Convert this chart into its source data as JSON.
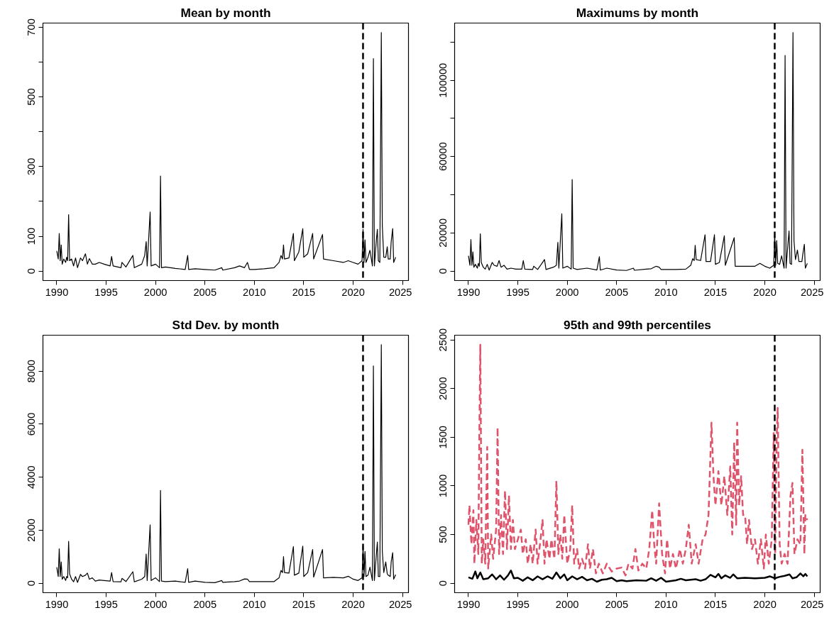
{
  "chart_data": [
    {
      "type": "line",
      "title": "Mean by month",
      "xlim": [
        1988.6,
        2025.6
      ],
      "xticks": [
        1990,
        1995,
        2000,
        2005,
        2010,
        2015,
        2020,
        2025
      ],
      "ylim": [
        -27,
        712
      ],
      "yticks": [
        0,
        100,
        {
          "value": 200,
          "label": null
        },
        300,
        {
          "value": 400,
          "label": null
        },
        500,
        {
          "value": 600,
          "label": null
        },
        700
      ],
      "grid": false,
      "ref_lines": [
        {
          "axis": "x",
          "value": 2021,
          "label": null,
          "color": "#000000",
          "line_style": "dashed"
        }
      ],
      "x": [
        1990.0,
        1990.15,
        1990.25,
        1990.35,
        1990.45,
        1990.55,
        1990.7,
        1990.9,
        1991.0,
        1991.1,
        1991.2,
        1991.3,
        1991.5,
        1991.7,
        1991.9,
        1992.1,
        1992.4,
        1992.6,
        1992.9,
        1993.1,
        1993.3,
        1993.6,
        1993.9,
        1994.3,
        1994.8,
        1995.4,
        1995.55,
        1995.7,
        1996.5,
        1996.6,
        1997.0,
        1997.7,
        1997.85,
        1998.6,
        1998.9,
        1999.05,
        1999.15,
        1999.45,
        1999.55,
        2000.0,
        2000.4,
        2000.5,
        2000.6,
        2001.0,
        2002.0,
        2003.0,
        2003.25,
        2003.35,
        2004.0,
        2005.0,
        2006.0,
        2006.7,
        2006.8,
        2008.0,
        2008.5,
        2009.0,
        2009.3,
        2009.5,
        2010.0,
        2011.0,
        2012.0,
        2012.5,
        2012.7,
        2012.85,
        2012.95,
        2013.05,
        2013.5,
        2013.95,
        2014.05,
        2014.5,
        2014.9,
        2015.0,
        2015.4,
        2015.9,
        2016.0,
        2016.9,
        2017.0,
        2018.0,
        2019.0,
        2019.5,
        2020.0,
        2020.5,
        2020.9,
        2021.0,
        2021.1,
        2021.2,
        2021.3,
        2021.5,
        2021.7,
        2021.95,
        2022.05,
        2022.15,
        2022.35,
        2022.45,
        2022.55,
        2022.7,
        2022.85,
        2022.95,
        2023.1,
        2023.3,
        2023.45,
        2023.55,
        2023.75,
        2023.85,
        2024.0,
        2024.1,
        2024.3
      ],
      "series": [
        {
          "color": "#000000",
          "line_style": "solid",
          "values": [
            58,
            35,
            108,
            30,
            75,
            20,
            35,
            25,
            40,
            30,
            162,
            30,
            35,
            15,
            38,
            10,
            38,
            30,
            50,
            20,
            36,
            20,
            20,
            25,
            20,
            15,
            42,
            15,
            10,
            25,
            12,
            45,
            10,
            20,
            45,
            85,
            15,
            170,
            15,
            20,
            10,
            273,
            10,
            12,
            8,
            5,
            45,
            5,
            7,
            5,
            3,
            10,
            3,
            10,
            15,
            10,
            25,
            5,
            5,
            7,
            10,
            25,
            45,
            35,
            75,
            35,
            38,
            108,
            30,
            55,
            122,
            40,
            50,
            108,
            35,
            105,
            35,
            30,
            25,
            30,
            25,
            20,
            30,
            120,
            25,
            90,
            25,
            40,
            60,
            15,
            610,
            15,
            90,
            120,
            30,
            25,
            685,
            130,
            40,
            40,
            70,
            35,
            35,
            85,
            122,
            25,
            40
          ]
        }
      ]
    },
    {
      "type": "line",
      "title": "Maximums by month",
      "xlim": [
        1988.6,
        2025.6
      ],
      "xticks": [
        1990,
        1995,
        2000,
        2005,
        2010,
        2015,
        2020,
        2025
      ],
      "ylim": [
        -5000,
        130000
      ],
      "yticks": [
        0,
        20000,
        {
          "value": 40000,
          "label": null
        },
        60000,
        {
          "value": 80000,
          "label": null
        },
        100000,
        {
          "value": 120000,
          "label": null
        }
      ],
      "grid": false,
      "ref_lines": [
        {
          "axis": "x",
          "value": 2021,
          "label": null,
          "color": "#000000",
          "line_style": "dashed"
        }
      ],
      "x": [
        1990.0,
        1990.15,
        1990.25,
        1990.35,
        1990.45,
        1990.55,
        1990.7,
        1990.9,
        1991.0,
        1991.1,
        1991.2,
        1991.3,
        1991.5,
        1991.7,
        1991.9,
        1992.1,
        1992.4,
        1992.6,
        1992.9,
        1993.1,
        1993.3,
        1993.6,
        1993.9,
        1994.3,
        1994.8,
        1995.4,
        1995.55,
        1995.7,
        1996.5,
        1996.6,
        1997.0,
        1997.7,
        1997.85,
        1998.6,
        1998.9,
        1999.05,
        1999.15,
        1999.45,
        1999.55,
        2000.0,
        2000.4,
        2000.5,
        2000.6,
        2001.0,
        2002.0,
        2003.0,
        2003.25,
        2003.35,
        2004.0,
        2005.0,
        2006.0,
        2006.7,
        2006.8,
        2008.0,
        2008.5,
        2009.0,
        2009.3,
        2009.5,
        2010.0,
        2011.0,
        2012.0,
        2012.5,
        2012.7,
        2012.85,
        2012.95,
        2013.05,
        2013.5,
        2013.95,
        2014.05,
        2014.5,
        2014.9,
        2015.0,
        2015.4,
        2015.9,
        2016.0,
        2016.9,
        2017.0,
        2018.0,
        2019.0,
        2019.5,
        2020.0,
        2020.5,
        2020.9,
        2021.0,
        2021.1,
        2021.2,
        2021.3,
        2021.5,
        2021.7,
        2021.95,
        2022.05,
        2022.15,
        2022.35,
        2022.45,
        2022.55,
        2022.7,
        2022.85,
        2022.95,
        2023.1,
        2023.3,
        2023.45,
        2023.55,
        2023.75,
        2023.85,
        2024.0,
        2024.1,
        2024.3
      ],
      "series": [
        {
          "color": "#000000",
          "line_style": "solid",
          "values": [
            8000,
            3000,
            16500,
            3000,
            10000,
            2000,
            3500,
            1500,
            4000,
            2500,
            19500,
            4500,
            2000,
            1000,
            3500,
            500,
            4500,
            3000,
            2500,
            5500,
            2000,
            3000,
            1000,
            1500,
            1000,
            1000,
            5500,
            1000,
            800,
            2500,
            800,
            6000,
            800,
            2000,
            3000,
            15000,
            1500,
            30000,
            1500,
            2500,
            1000,
            48000,
            1500,
            800,
            1500,
            500,
            7500,
            500,
            1500,
            500,
            300,
            1500,
            400,
            1000,
            1200,
            2500,
            2000,
            800,
            800,
            800,
            1000,
            3000,
            6500,
            5500,
            13500,
            6000,
            5500,
            19000,
            5000,
            5000,
            19000,
            3500,
            4500,
            18500,
            3000,
            17500,
            2500,
            2500,
            2500,
            4000,
            2500,
            1500,
            3000,
            19000,
            3000,
            16000,
            4000,
            3500,
            8000,
            1500,
            113000,
            1500,
            15000,
            21000,
            4000,
            3500,
            125000,
            16000,
            6000,
            11000,
            5000,
            5000,
            5000,
            9000,
            14000,
            1500,
            4000
          ]
        }
      ]
    },
    {
      "type": "line",
      "title": "Std Dev. by month",
      "xlim": [
        1988.6,
        2025.6
      ],
      "xticks": [
        1990,
        1995,
        2000,
        2005,
        2010,
        2015,
        2020,
        2025
      ],
      "ylim": [
        -360,
        9360
      ],
      "yticks": [
        0,
        2000,
        4000,
        6000,
        8000
      ],
      "grid": false,
      "ref_lines": [
        {
          "axis": "x",
          "value": 2021,
          "label": null,
          "color": "#000000",
          "line_style": "dashed"
        }
      ],
      "x": [
        1990.0,
        1990.15,
        1990.25,
        1990.35,
        1990.45,
        1990.55,
        1990.7,
        1990.9,
        1991.0,
        1991.1,
        1991.2,
        1991.3,
        1991.5,
        1991.7,
        1991.9,
        1992.1,
        1992.4,
        1992.6,
        1992.9,
        1993.1,
        1993.3,
        1993.6,
        1993.9,
        1994.3,
        1994.8,
        1995.4,
        1995.55,
        1995.7,
        1996.5,
        1996.6,
        1997.0,
        1997.7,
        1997.85,
        1998.6,
        1998.9,
        1999.05,
        1999.15,
        1999.45,
        1999.55,
        2000.0,
        2000.4,
        2000.5,
        2000.6,
        2001.0,
        2002.0,
        2003.0,
        2003.25,
        2003.35,
        2004.0,
        2005.0,
        2006.0,
        2006.7,
        2006.8,
        2008.0,
        2008.5,
        2009.0,
        2009.3,
        2009.5,
        2010.0,
        2011.0,
        2012.0,
        2012.5,
        2012.7,
        2012.85,
        2012.95,
        2013.05,
        2013.5,
        2013.95,
        2014.05,
        2014.5,
        2014.9,
        2015.0,
        2015.4,
        2015.9,
        2016.0,
        2016.9,
        2017.0,
        2018.0,
        2019.0,
        2019.5,
        2020.0,
        2020.5,
        2020.9,
        2021.0,
        2021.1,
        2021.2,
        2021.3,
        2021.5,
        2021.7,
        2021.95,
        2022.05,
        2022.15,
        2022.35,
        2022.45,
        2022.55,
        2022.7,
        2022.85,
        2022.95,
        2023.1,
        2023.3,
        2023.45,
        2023.55,
        2023.75,
        2023.85,
        2024.0,
        2024.1,
        2024.3
      ],
      "series": [
        {
          "color": "#000000",
          "line_style": "solid",
          "values": [
            600,
            250,
            1300,
            250,
            800,
            150,
            250,
            100,
            250,
            200,
            1580,
            350,
            150,
            50,
            250,
            30,
            330,
            250,
            300,
            380,
            150,
            200,
            80,
            120,
            100,
            80,
            400,
            60,
            50,
            180,
            60,
            430,
            50,
            150,
            250,
            1100,
            100,
            2200,
            100,
            200,
            60,
            3500,
            80,
            60,
            80,
            30,
            550,
            30,
            80,
            30,
            20,
            100,
            30,
            60,
            80,
            160,
            150,
            60,
            60,
            60,
            60,
            200,
            480,
            400,
            1000,
            400,
            380,
            1380,
            300,
            380,
            1400,
            250,
            400,
            1270,
            230,
            1270,
            200,
            220,
            200,
            260,
            150,
            100,
            200,
            1400,
            250,
            1200,
            250,
            300,
            600,
            100,
            8200,
            100,
            1100,
            1550,
            250,
            250,
            9000,
            1200,
            400,
            800,
            350,
            300,
            250,
            800,
            1150,
            150,
            320
          ]
        }
      ]
    },
    {
      "type": "line",
      "title": "95th and 99th percentiles",
      "xlim": [
        1988.6,
        2025.6
      ],
      "xticks": [
        1990,
        1995,
        2000,
        2005,
        2010,
        2015,
        2020,
        2025
      ],
      "ylim": [
        -98,
        2548
      ],
      "yticks": [
        0,
        500,
        1000,
        1500,
        2000,
        2500
      ],
      "grid": false,
      "ref_lines": [
        {
          "axis": "x",
          "value": 2021,
          "label": null,
          "color": "#000000",
          "line_style": "dashed"
        }
      ],
      "series": [
        {
          "color": "#000000",
          "line_style": "solid",
          "x": [
            1990.0,
            1990.4,
            1990.7,
            1990.9,
            1991.2,
            1991.5,
            1992.0,
            1992.4,
            1992.8,
            1993.2,
            1993.6,
            1994.0,
            1994.3,
            1994.6,
            1995.0,
            1995.5,
            1996.0,
            1996.5,
            1997.0,
            1997.5,
            1998.0,
            1998.5,
            1998.9,
            1999.3,
            1999.7,
            2000.0,
            2000.5,
            2001.0,
            2001.5,
            2002.0,
            2002.5,
            2003.0,
            2003.5,
            2004.0,
            2004.5,
            2005.0,
            2005.5,
            2006.0,
            2007.0,
            2008.0,
            2008.5,
            2009.0,
            2009.5,
            2010.0,
            2011.0,
            2011.5,
            2012.0,
            2013.0,
            2013.5,
            2014.0,
            2014.5,
            2015.0,
            2015.3,
            2015.6,
            2016.0,
            2016.5,
            2016.8,
            2017.2,
            2018.0,
            2019.0,
            2020.0,
            2020.5,
            2021.0,
            2021.5,
            2022.0,
            2022.5,
            2022.8,
            2023.2,
            2023.6,
            2023.9,
            2024.1,
            2024.3
          ],
          "values": [
            60,
            45,
            120,
            50,
            110,
            40,
            50,
            90,
            40,
            80,
            35,
            80,
            130,
            50,
            55,
            25,
            60,
            30,
            70,
            40,
            70,
            45,
            110,
            50,
            90,
            30,
            70,
            40,
            65,
            30,
            45,
            15,
            35,
            40,
            55,
            20,
            30,
            20,
            30,
            25,
            50,
            25,
            55,
            15,
            30,
            45,
            30,
            40,
            25,
            40,
            85,
            60,
            95,
            50,
            80,
            55,
            90,
            50,
            55,
            50,
            55,
            70,
            50,
            65,
            75,
            90,
            50,
            60,
            100,
            70,
            95,
            70
          ]
        },
        {
          "color": "#df536b",
          "line_style": "dashed",
          "x": [
            1990.0,
            1990.1,
            1990.3,
            1990.5,
            1990.6,
            1990.8,
            1991.0,
            1991.1,
            1991.2,
            1991.35,
            1991.5,
            1991.7,
            1991.9,
            1992.0,
            1992.3,
            1992.5,
            1992.8,
            1992.95,
            1993.1,
            1993.3,
            1993.5,
            1993.7,
            1993.9,
            1994.1,
            1994.3,
            1994.5,
            1994.7,
            1995.0,
            1995.3,
            1995.5,
            1995.8,
            1996.0,
            1996.3,
            1996.5,
            1996.8,
            1997.0,
            1997.3,
            1997.5,
            1997.7,
            1997.9,
            1998.2,
            1998.4,
            1998.7,
            1998.9,
            1999.1,
            1999.3,
            1999.5,
            1999.7,
            2000.0,
            2000.3,
            2000.5,
            2000.7,
            2001.0,
            2001.2,
            2001.5,
            2001.8,
            2002.1,
            2002.3,
            2002.6,
            2002.9,
            2003.2,
            2003.6,
            2004.0,
            2004.5,
            2005.0,
            2005.5,
            2005.9,
            2006.2,
            2006.6,
            2006.9,
            2007.2,
            2007.6,
            2008.0,
            2008.3,
            2008.6,
            2008.8,
            2009.0,
            2009.3,
            2009.6,
            2009.9,
            2010.1,
            2010.4,
            2010.7,
            2011.0,
            2011.4,
            2011.7,
            2012.0,
            2012.3,
            2012.6,
            2013.0,
            2013.3,
            2013.7,
            2014.0,
            2014.3,
            2014.6,
            2014.8,
            2015.0,
            2015.3,
            2015.6,
            2015.9,
            2016.2,
            2016.5,
            2016.7,
            2016.9,
            2017.1,
            2017.2,
            2017.4,
            2017.6,
            2017.8,
            2018.0,
            2018.2,
            2018.4,
            2018.7,
            2019.0,
            2019.3,
            2019.6,
            2019.9,
            2020.1,
            2020.4,
            2020.7,
            2020.9,
            2021.05,
            2021.2,
            2021.3,
            2021.5,
            2021.7,
            2022.0,
            2022.3,
            2022.6,
            2022.8,
            2023.0,
            2023.3,
            2023.6,
            2023.8,
            2024.0,
            2024.1,
            2024.3
          ],
          "values": [
            600,
            800,
            400,
            750,
            200,
            650,
            300,
            1500,
            2450,
            200,
            450,
            200,
            1400,
            150,
            500,
            250,
            550,
            1600,
            300,
            700,
            300,
            950,
            350,
            900,
            350,
            650,
            350,
            450,
            550,
            300,
            450,
            200,
            400,
            200,
            550,
            200,
            450,
            650,
            200,
            450,
            250,
            450,
            250,
            1050,
            300,
            500,
            250,
            700,
            200,
            350,
            800,
            200,
            350,
            150,
            250,
            150,
            400,
            150,
            350,
            100,
            200,
            100,
            200,
            120,
            150,
            160,
            80,
            200,
            150,
            350,
            130,
            200,
            150,
            350,
            750,
            400,
            200,
            820,
            300,
            100,
            450,
            150,
            300,
            150,
            350,
            200,
            350,
            600,
            200,
            400,
            200,
            450,
            500,
            700,
            1650,
            1100,
            800,
            1150,
            800,
            1100,
            700,
            1200,
            500,
            1450,
            600,
            1650,
            800,
            1100,
            700,
            700,
            400,
            650,
            350,
            450,
            200,
            450,
            150,
            500,
            200,
            450,
            1550,
            300,
            1500,
            1800,
            400,
            200,
            300,
            200,
            900,
            1030,
            300,
            450,
            400,
            1370,
            300,
            700,
            650
          ]
        }
      ]
    }
  ]
}
